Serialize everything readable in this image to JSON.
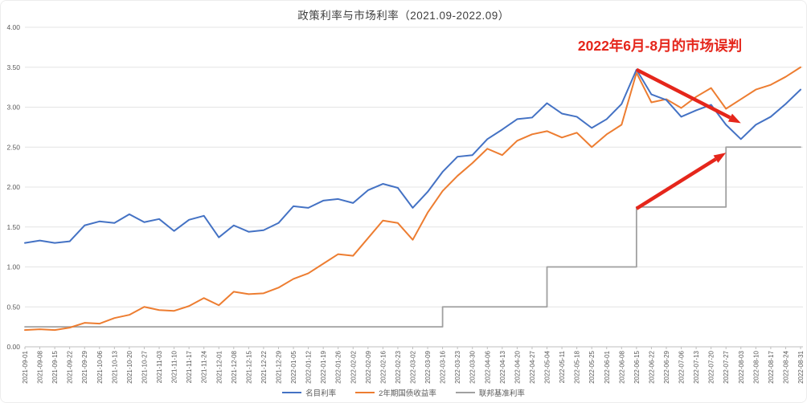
{
  "chart_data": {
    "type": "line",
    "title": "政策利率与市场利率（2021.09-2022.09）",
    "xlabel": "",
    "ylabel": "",
    "ylim": [
      0,
      4
    ],
    "ytick_step": 0.5,
    "y_tick_labels": [
      "0.00",
      "0.50",
      "1.00",
      "1.50",
      "2.00",
      "2.50",
      "3.00",
      "3.50",
      "4.00"
    ],
    "grid": "horizontal",
    "legend_position": "bottom",
    "categories": [
      "2021-09-01",
      "2021-09-08",
      "2021-09-15",
      "2021-09-22",
      "2021-09-29",
      "2021-10-06",
      "2021-10-13",
      "2021-10-20",
      "2021-10-27",
      "2021-11-03",
      "2021-11-10",
      "2021-11-17",
      "2021-11-24",
      "2021-12-01",
      "2021-12-08",
      "2021-12-15",
      "2021-12-22",
      "2021-12-29",
      "2022-01-05",
      "2022-01-12",
      "2022-01-19",
      "2022-01-26",
      "2022-02-02",
      "2022-02-09",
      "2022-02-16",
      "2022-02-23",
      "2022-03-02",
      "2022-03-09",
      "2022-03-16",
      "2022-03-23",
      "2022-03-30",
      "2022-04-06",
      "2022-04-13",
      "2022-04-20",
      "2022-04-27",
      "2022-05-04",
      "2022-05-11",
      "2022-05-18",
      "2022-05-25",
      "2022-06-01",
      "2022-06-08",
      "2022-06-15",
      "2022-06-22",
      "2022-06-29",
      "2022-07-06",
      "2022-07-13",
      "2022-07-20",
      "2022-07-27",
      "2022-08-03",
      "2022-08-10",
      "2022-08-17",
      "2022-08-24",
      "2022-08-31"
    ],
    "series": [
      {
        "name": "名目利率",
        "key": "nominal-rate",
        "color": "#4472C4",
        "style": "line",
        "values": [
          1.3,
          1.33,
          1.3,
          1.32,
          1.52,
          1.57,
          1.55,
          1.66,
          1.56,
          1.6,
          1.45,
          1.59,
          1.64,
          1.37,
          1.52,
          1.44,
          1.46,
          1.55,
          1.76,
          1.74,
          1.83,
          1.85,
          1.8,
          1.96,
          2.04,
          1.99,
          1.74,
          1.94,
          2.19,
          2.38,
          2.4,
          2.6,
          2.72,
          2.85,
          2.87,
          3.05,
          2.92,
          2.88,
          2.74,
          2.85,
          3.04,
          3.47,
          3.16,
          3.09,
          2.88,
          2.96,
          3.03,
          2.78,
          2.6,
          2.78,
          2.88,
          3.04,
          3.22
        ]
      },
      {
        "name": "2年期国债收益率",
        "key": "2y-treasury-yield",
        "color": "#ED7D31",
        "style": "line",
        "values": [
          0.21,
          0.22,
          0.21,
          0.24,
          0.3,
          0.29,
          0.36,
          0.4,
          0.5,
          0.46,
          0.45,
          0.51,
          0.61,
          0.52,
          0.69,
          0.66,
          0.67,
          0.74,
          0.85,
          0.92,
          1.04,
          1.16,
          1.14,
          1.36,
          1.58,
          1.55,
          1.34,
          1.68,
          1.95,
          2.14,
          2.3,
          2.48,
          2.4,
          2.58,
          2.66,
          2.7,
          2.62,
          2.68,
          2.5,
          2.66,
          2.78,
          3.43,
          3.06,
          3.1,
          2.99,
          3.13,
          3.24,
          2.98,
          3.1,
          3.22,
          3.28,
          3.38,
          3.5
        ]
      },
      {
        "name": "联邦基准利率",
        "key": "fed-funds-rate",
        "color": "#A0A0A0",
        "style": "step",
        "values": [
          0.25,
          0.25,
          0.25,
          0.25,
          0.25,
          0.25,
          0.25,
          0.25,
          0.25,
          0.25,
          0.25,
          0.25,
          0.25,
          0.25,
          0.25,
          0.25,
          0.25,
          0.25,
          0.25,
          0.25,
          0.25,
          0.25,
          0.25,
          0.25,
          0.25,
          0.25,
          0.25,
          0.25,
          0.5,
          0.5,
          0.5,
          0.5,
          0.5,
          0.5,
          0.5,
          1.0,
          1.0,
          1.0,
          1.0,
          1.0,
          1.0,
          1.75,
          1.75,
          1.75,
          1.75,
          1.75,
          1.75,
          2.5,
          2.5,
          2.5,
          2.5,
          2.5,
          2.5
        ]
      }
    ],
    "annotation": {
      "text": "2022年6月-8月的市场误判",
      "color": "#E5261B"
    },
    "arrows": [
      {
        "from": {
          "date": "2022-06-15",
          "value": 3.47
        },
        "to": {
          "date": "2022-08-03",
          "value": 2.8
        }
      },
      {
        "from": {
          "date": "2022-06-15",
          "value": 1.73
        },
        "to": {
          "date": "2022-07-27",
          "value": 2.43
        }
      }
    ],
    "colors": {
      "gridline": "#e4e4e4",
      "axis_line": "#bfbfbf",
      "tick_label": "#595959",
      "title_text": "#3f3f3f"
    }
  }
}
